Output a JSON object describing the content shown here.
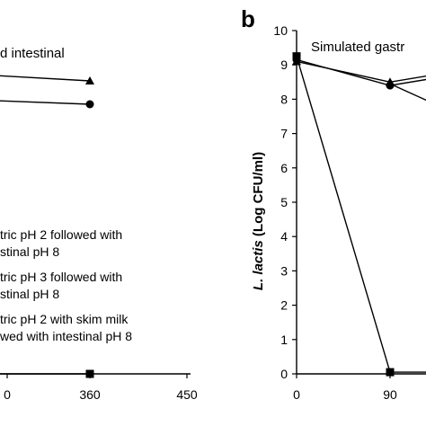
{
  "chart_data": [
    {
      "panel": "",
      "type": "line",
      "annotation": "d intestinal",
      "x_ticks": [
        "0",
        "360",
        "450"
      ],
      "xlim": [
        270,
        450
      ],
      "series": [
        {
          "name": "tric pH 2 followed with\nstinal pH 8",
          "marker": "triangle",
          "x": [
            270,
            360
          ],
          "y": [
            8.9,
            8.6
          ]
        },
        {
          "name": "tric pH 3 followed with\nstinal pH 8",
          "marker": "circle",
          "x": [
            270,
            360
          ],
          "y": [
            8.1,
            8.0
          ]
        },
        {
          "name": "tric pH 2 with skim milk\nwed with intestinal pH 8",
          "marker": "square",
          "x": [
            270,
            360
          ],
          "y": [
            0,
            0
          ]
        }
      ],
      "legend": [
        [
          "tric pH 2 followed with",
          "stinal pH 8"
        ],
        [
          "tric pH 3 followed with",
          "stinal pH 8"
        ],
        [
          "tric pH 2 with skim milk",
          "wed with intestinal pH 8"
        ]
      ]
    },
    {
      "panel": "b",
      "type": "line",
      "annotation": "Simulated gastr",
      "ylabel_italic": "L. lactis",
      "ylabel_rest": " (Log CFU/ml)",
      "ylim": [
        0,
        10
      ],
      "y_ticks": [
        "0",
        "1",
        "2",
        "3",
        "4",
        "5",
        "6",
        "7",
        "8",
        "9",
        "10"
      ],
      "x_ticks": [
        "0",
        "90"
      ],
      "series": [
        {
          "marker": "triangle",
          "x": [
            0,
            90,
            130
          ],
          "y": [
            9.1,
            8.5,
            8.7
          ]
        },
        {
          "marker": "circle",
          "x": [
            0,
            90,
            130
          ],
          "y": [
            9.15,
            8.4,
            8.6
          ]
        },
        {
          "marker": "square",
          "x": [
            0,
            90,
            130
          ],
          "y": [
            9.25,
            0.05,
            0.05
          ]
        },
        {
          "marker": "none",
          "x": [
            90,
            130
          ],
          "y": [
            8.45,
            7.9
          ]
        }
      ]
    }
  ]
}
